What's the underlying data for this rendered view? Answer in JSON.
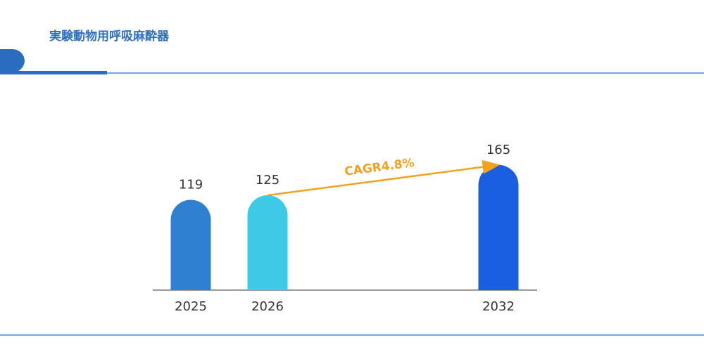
{
  "chart_data": {
    "type": "bar",
    "title": "実験動物用呼吸麻酔器",
    "categories": [
      "2025",
      "2026",
      "2032"
    ],
    "values": [
      119,
      125,
      165
    ],
    "colors": [
      "#2f80d1",
      "#3ec9e6",
      "#1a5fdf"
    ],
    "ylim": [
      0,
      200
    ],
    "annotation": "CAGR4.8%",
    "annotation_color": "#f4a11c"
  }
}
